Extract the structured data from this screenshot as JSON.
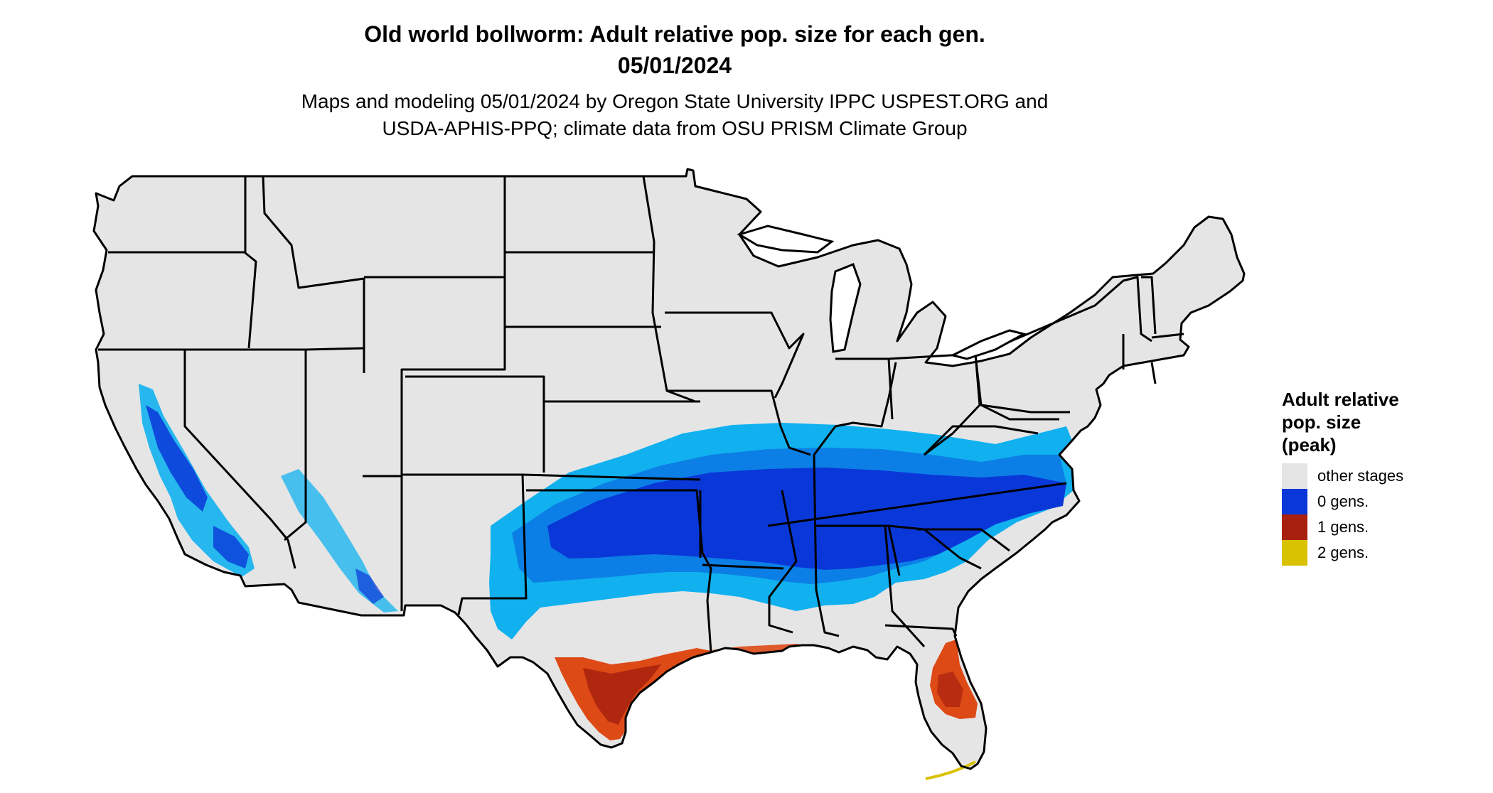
{
  "title": {
    "line1": "Old world bollworm: Adult relative pop. size for each gen.",
    "line2": "05/01/2024"
  },
  "subtitle": {
    "line1": "Maps and modeling 05/01/2024 by Oregon State University IPPC USPEST.ORG and",
    "line2": "USDA-APHIS-PPQ; climate data from OSU PRISM Climate Group"
  },
  "legend": {
    "title": [
      "Adult relative",
      "pop. size",
      "(peak)"
    ],
    "items": [
      {
        "label": "other stages",
        "color": "#e5e5e5"
      },
      {
        "label": "0 gens.",
        "color": "#0a38d8"
      },
      {
        "label": "1 gens.",
        "color": "#a8210f"
      },
      {
        "label": "2 gens.",
        "color": "#d9c200"
      }
    ]
  },
  "map": {
    "region": "conterminous United States",
    "base_color": "#e5e5e5",
    "border_color": "#000000",
    "zone_colors": {
      "light_blue": "#11b1ef",
      "mid_blue": "#0c7fe6",
      "dark_blue": "#0a38d8",
      "orange": "#de4a16",
      "red": "#a8210f",
      "yellow": "#d9c200"
    }
  }
}
